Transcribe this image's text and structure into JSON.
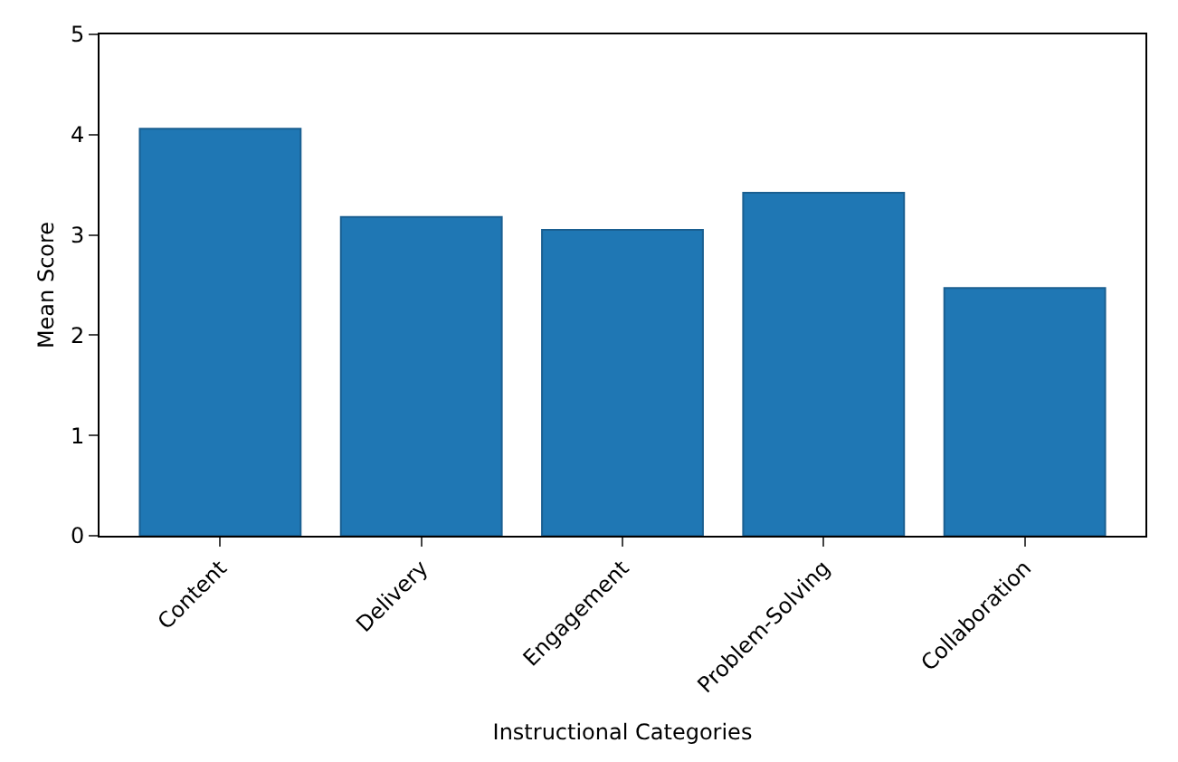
{
  "chart_data": {
    "type": "bar",
    "xlabel": "Instructional Categories",
    "ylabel": "Mean Score",
    "categories": [
      "Content",
      "Delivery",
      "Engagement",
      "Problem-Solving",
      "Collaboration"
    ],
    "values": [
      4.06,
      3.18,
      3.05,
      3.42,
      2.47
    ],
    "color": "#1f77b4",
    "ylim": [
      0,
      5
    ],
    "yticks": [
      0,
      1,
      2,
      3,
      4,
      5
    ]
  }
}
